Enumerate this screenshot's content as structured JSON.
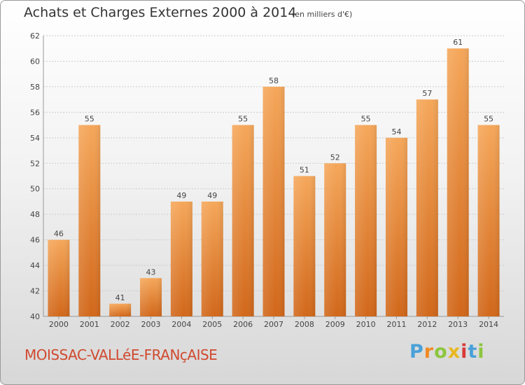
{
  "header": {
    "title": "Achats et Charges Externes 2000 à 2014",
    "subtitle": "(en milliers d'€)"
  },
  "footer": {
    "place": "MOISSAC-VALLéE-FRANçAISE",
    "brand": {
      "name": "Proxiti",
      "letters": [
        {
          "char": "P",
          "color": "#4aa0d8"
        },
        {
          "char": "r",
          "color": "#f08a24"
        },
        {
          "char": "o",
          "color": "#8cc63f"
        },
        {
          "char": "x",
          "color": "#e8b820"
        },
        {
          "char": "i",
          "color": "#d83a3a"
        },
        {
          "char": "t",
          "color": "#4aa0d8"
        },
        {
          "char": "i",
          "color": "#8cc63f"
        }
      ]
    }
  },
  "colors": {
    "bar_top": "#f5a75a",
    "bar_bottom": "#d1671a",
    "grid": "#cccccc",
    "axis": "#999999",
    "text": "#444444",
    "place": "#d04a2f"
  },
  "chart_data": {
    "type": "bar",
    "categories": [
      "2000",
      "2001",
      "2002",
      "2003",
      "2004",
      "2005",
      "2006",
      "2007",
      "2008",
      "2009",
      "2010",
      "2011",
      "2012",
      "2013",
      "2014"
    ],
    "values": [
      46,
      55,
      41,
      43,
      49,
      49,
      55,
      58,
      51,
      52,
      55,
      54,
      57,
      61,
      55
    ],
    "yticks": [
      40,
      42,
      44,
      46,
      48,
      50,
      52,
      54,
      56,
      58,
      60,
      62
    ],
    "ylim": [
      40,
      62
    ],
    "grid": true,
    "data_labels": true
  }
}
